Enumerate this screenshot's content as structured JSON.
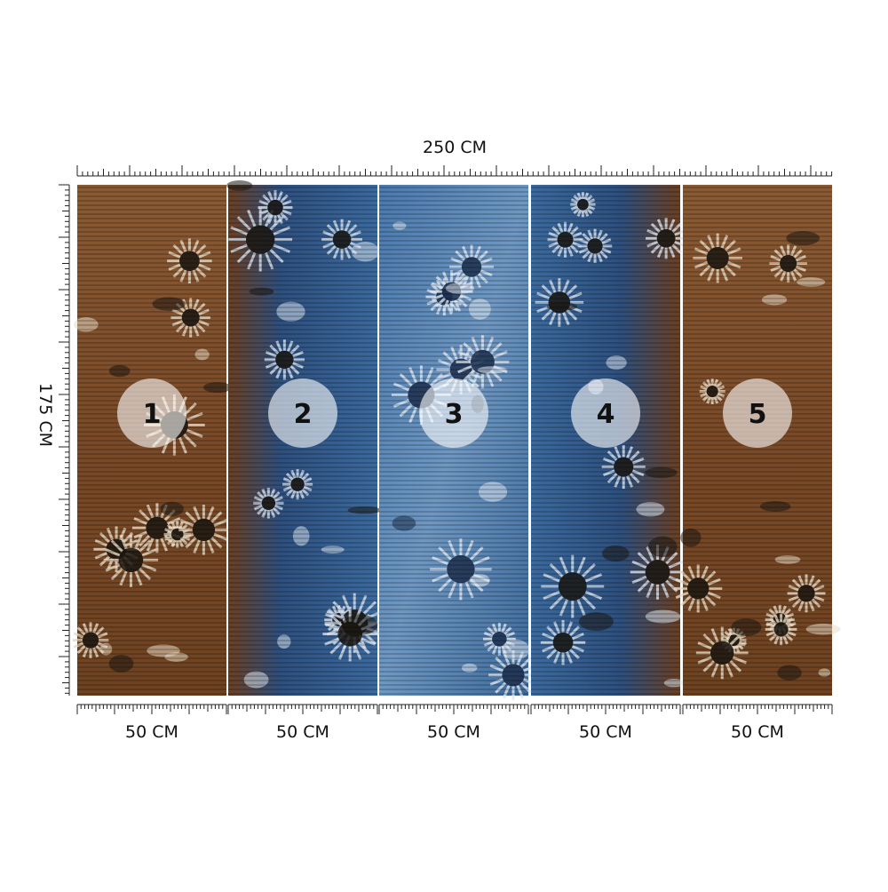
{
  "dimensions": {
    "width_label": "250 CM",
    "height_label": "175 CM"
  },
  "panels": [
    {
      "number": "1",
      "width_label": "50 CM"
    },
    {
      "number": "2",
      "width_label": "50 CM"
    },
    {
      "number": "3",
      "width_label": "50 CM"
    },
    {
      "number": "4",
      "width_label": "50 CM"
    },
    {
      "number": "5",
      "width_label": "50 CM"
    }
  ]
}
